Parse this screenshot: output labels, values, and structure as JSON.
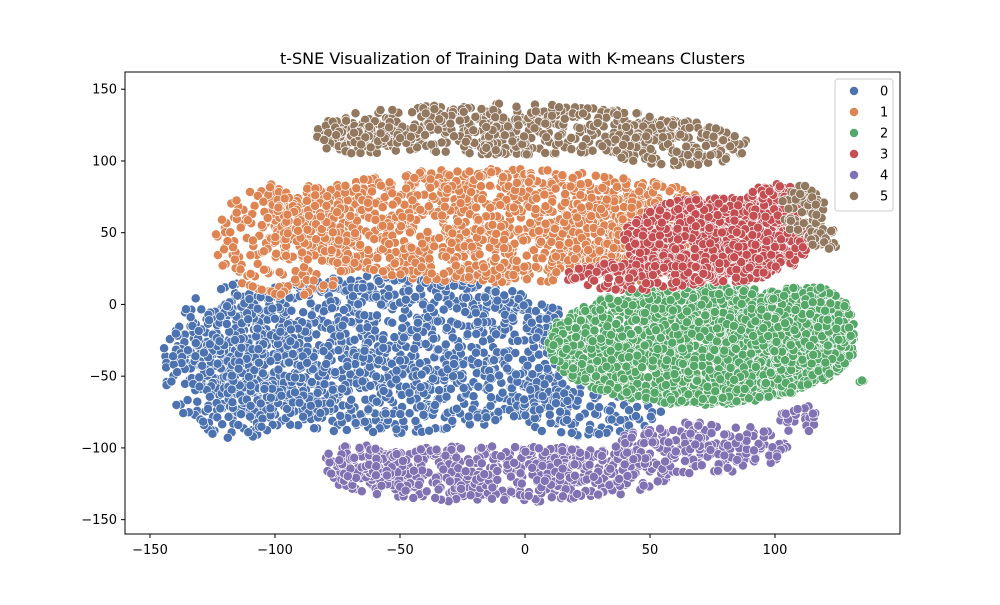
{
  "chart_data": {
    "type": "scatter",
    "title": "t-SNE Visualization of Training Data with K-means Clusters",
    "xlabel": "",
    "ylabel": "",
    "xlim": [
      -160,
      150
    ],
    "ylim": [
      -160,
      162
    ],
    "xticks": [
      -150,
      -100,
      -50,
      0,
      50,
      100
    ],
    "yticks": [
      -150,
      -100,
      -50,
      0,
      50,
      100,
      150
    ],
    "xtick_labels": [
      "−150",
      "−100",
      "−50",
      "0",
      "50",
      "100"
    ],
    "ytick_labels": [
      "−150",
      "−100",
      "−50",
      "0",
      "50",
      "100",
      "150"
    ],
    "grid": false,
    "legend_position": "top-right",
    "marker": "circle with white edge",
    "series": [
      {
        "name": "0",
        "color": "#4c72b0",
        "regions": [
          {
            "shape": "ellipse",
            "cx": -55,
            "cy": -35,
            "rx": 85,
            "ry": 55,
            "n": 1400
          },
          {
            "shape": "ellipse",
            "cx": -115,
            "cy": -40,
            "rx": 30,
            "ry": 55,
            "n": 300
          },
          {
            "shape": "ellipse",
            "cx": 25,
            "cy": -75,
            "rx": 30,
            "ry": 18,
            "n": 120
          }
        ]
      },
      {
        "name": "1",
        "color": "#dd8452",
        "regions": [
          {
            "shape": "ellipse",
            "cx": -10,
            "cy": 55,
            "rx": 95,
            "ry": 40,
            "n": 1300
          },
          {
            "shape": "ellipse",
            "cx": -95,
            "cy": 45,
            "rx": 30,
            "ry": 40,
            "n": 250
          },
          {
            "shape": "ellipse",
            "cx": 40,
            "cy": 45,
            "rx": 30,
            "ry": 30,
            "n": 250
          }
        ]
      },
      {
        "name": "2",
        "color": "#55a868",
        "regions": [
          {
            "shape": "ellipse",
            "cx": 70,
            "cy": -28,
            "rx": 62,
            "ry": 42,
            "n": 2200
          },
          {
            "shape": "ellipse",
            "cx": 112,
            "cy": -15,
            "rx": 20,
            "ry": 28,
            "n": 300
          },
          {
            "shape": "point",
            "x": 135,
            "y": -53
          }
        ]
      },
      {
        "name": "3",
        "color": "#c44e52",
        "regions": [
          {
            "shape": "ellipse",
            "cx": 77,
            "cy": 45,
            "rx": 38,
            "ry": 30,
            "n": 900
          },
          {
            "shape": "ellipse",
            "cx": 45,
            "cy": 20,
            "rx": 30,
            "ry": 10,
            "n": 120
          },
          {
            "shape": "ellipse",
            "cx": 100,
            "cy": 70,
            "rx": 12,
            "ry": 14,
            "n": 100
          }
        ]
      },
      {
        "name": "4",
        "color": "#8172b3",
        "regions": [
          {
            "shape": "ellipse",
            "cx": -10,
            "cy": -118,
            "rx": 70,
            "ry": 20,
            "n": 520
          },
          {
            "shape": "ellipse",
            "cx": 70,
            "cy": -100,
            "rx": 35,
            "ry": 18,
            "n": 220
          },
          {
            "shape": "ellipse",
            "cx": -65,
            "cy": -110,
            "rx": 18,
            "ry": 12,
            "n": 80
          },
          {
            "shape": "ellipse",
            "cx": 110,
            "cy": -80,
            "rx": 8,
            "ry": 10,
            "n": 30
          }
        ]
      },
      {
        "name": "5",
        "color": "#937860",
        "regions": [
          {
            "shape": "ellipse",
            "cx": -10,
            "cy": 122,
            "rx": 75,
            "ry": 18,
            "n": 520
          },
          {
            "shape": "ellipse",
            "cx": 60,
            "cy": 112,
            "rx": 30,
            "ry": 16,
            "n": 180
          },
          {
            "shape": "ellipse",
            "cx": -65,
            "cy": 115,
            "rx": 20,
            "ry": 10,
            "n": 70
          },
          {
            "shape": "ellipse",
            "cx": 112,
            "cy": 65,
            "rx": 10,
            "ry": 18,
            "n": 60
          },
          {
            "shape": "ellipse",
            "cx": 120,
            "cy": 45,
            "rx": 6,
            "ry": 8,
            "n": 25
          }
        ]
      }
    ]
  }
}
